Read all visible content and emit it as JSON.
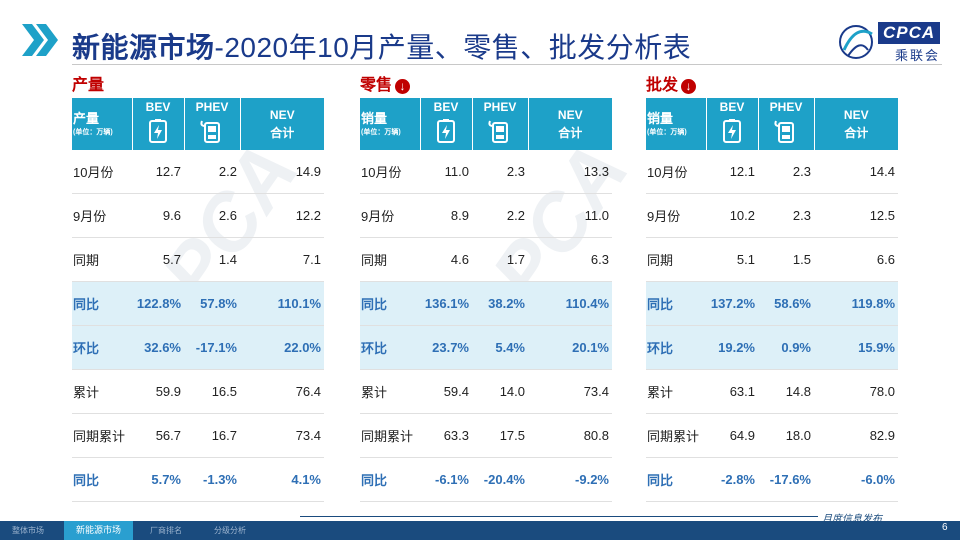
{
  "header": {
    "title_bold": "新能源市场",
    "title_rest": "-2020年10月产量、零售、批发分析表",
    "logo_text": "CPCA",
    "logo_cn": "乘联会"
  },
  "columns": {
    "bev": "BEV",
    "phev": "PHEV",
    "nev_line1": "NEV",
    "nev_line2": "合计",
    "unit": "(单位：万辆)"
  },
  "panels": {
    "production": {
      "label": "产量",
      "corner": "产量",
      "rows": [
        {
          "label": "10月份",
          "bev": "12.7",
          "phev": "2.2",
          "nev": "14.9"
        },
        {
          "label": "9月份",
          "bev": "9.6",
          "phev": "2.6",
          "nev": "12.2"
        },
        {
          "label": "同期",
          "bev": "5.7",
          "phev": "1.4",
          "nev": "7.1"
        },
        {
          "label": "同比",
          "bev": "122.8%",
          "phev": "57.8%",
          "nev": "110.1%"
        },
        {
          "label": "环比",
          "bev": "32.6%",
          "phev": "-17.1%",
          "nev": "22.0%"
        },
        {
          "label": "累计",
          "bev": "59.9",
          "phev": "16.5",
          "nev": "76.4"
        },
        {
          "label": "同期累计",
          "bev": "56.7",
          "phev": "16.7",
          "nev": "73.4"
        },
        {
          "label": "同比",
          "bev": "5.7%",
          "phev": "-1.3%",
          "nev": "4.1%"
        }
      ]
    },
    "retail": {
      "label": "零售",
      "corner": "销量",
      "rows": [
        {
          "label": "10月份",
          "bev": "11.0",
          "phev": "2.3",
          "nev": "13.3"
        },
        {
          "label": "9月份",
          "bev": "8.9",
          "phev": "2.2",
          "nev": "11.0"
        },
        {
          "label": "同期",
          "bev": "4.6",
          "phev": "1.7",
          "nev": "6.3"
        },
        {
          "label": "同比",
          "bev": "136.1%",
          "phev": "38.2%",
          "nev": "110.4%"
        },
        {
          "label": "环比",
          "bev": "23.7%",
          "phev": "5.4%",
          "nev": "20.1%"
        },
        {
          "label": "累计",
          "bev": "59.4",
          "phev": "14.0",
          "nev": "73.4"
        },
        {
          "label": "同期累计",
          "bev": "63.3",
          "phev": "17.5",
          "nev": "80.8"
        },
        {
          "label": "同比",
          "bev": "-6.1%",
          "phev": "-20.4%",
          "nev": "-9.2%"
        }
      ]
    },
    "wholesale": {
      "label": "批发",
      "corner": "销量",
      "rows": [
        {
          "label": "10月份",
          "bev": "12.1",
          "phev": "2.3",
          "nev": "14.4"
        },
        {
          "label": "9月份",
          "bev": "10.2",
          "phev": "2.3",
          "nev": "12.5"
        },
        {
          "label": "同期",
          "bev": "5.1",
          "phev": "1.5",
          "nev": "6.6"
        },
        {
          "label": "同比",
          "bev": "137.2%",
          "phev": "58.6%",
          "nev": "119.8%"
        },
        {
          "label": "环比",
          "bev": "19.2%",
          "phev": "0.9%",
          "nev": "15.9%"
        },
        {
          "label": "累计",
          "bev": "63.1",
          "phev": "14.8",
          "nev": "78.0"
        },
        {
          "label": "同期累计",
          "bev": "64.9",
          "phev": "18.0",
          "nev": "82.9"
        },
        {
          "label": "同比",
          "bev": "-2.8%",
          "phev": "-17.6%",
          "nev": "-6.0%"
        }
      ]
    }
  },
  "footer": {
    "tabs": [
      "整体市场",
      "新能源市场",
      "厂商排名",
      "分级分析"
    ],
    "active_tab": "新能源市场",
    "tagline": "月度信息发布",
    "page_number": "6"
  },
  "watermark": "CPCA"
}
